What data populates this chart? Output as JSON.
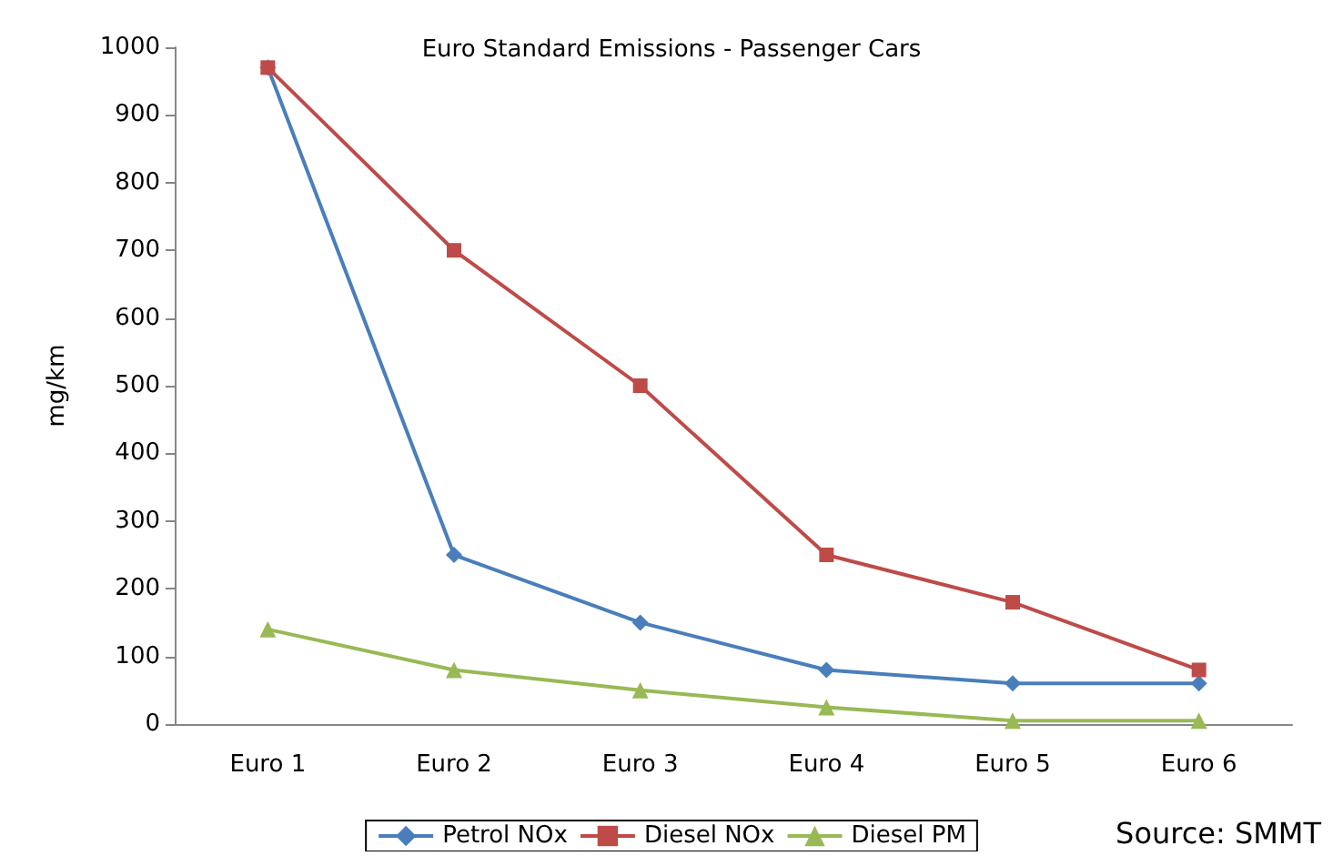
{
  "chart_data": {
    "type": "line",
    "title": "Euro Standard Emissions - Passenger Cars",
    "ylabel": "mg/km",
    "categories": [
      "Euro 1",
      "Euro 2",
      "Euro 3",
      "Euro 4",
      "Euro 5",
      "Euro 6"
    ],
    "series": [
      {
        "name": "Petrol NOx",
        "color": "#4a7ebb",
        "marker": "diamond",
        "values": [
          970,
          250,
          150,
          80,
          60,
          60
        ]
      },
      {
        "name": "Diesel NOx",
        "color": "#be4b48",
        "marker": "square",
        "values": [
          970,
          700,
          500,
          250,
          180,
          80
        ]
      },
      {
        "name": "Diesel PM",
        "color": "#98b954",
        "marker": "triangle",
        "values": [
          140,
          80,
          50,
          25,
          5,
          5
        ]
      }
    ],
    "ylim": [
      0,
      1000
    ],
    "yticks": [
      0,
      100,
      200,
      300,
      400,
      500,
      600,
      700,
      800,
      900,
      1000
    ],
    "grid": false,
    "legend": "bottom",
    "annotations": [
      "Source: SMMT"
    ]
  }
}
